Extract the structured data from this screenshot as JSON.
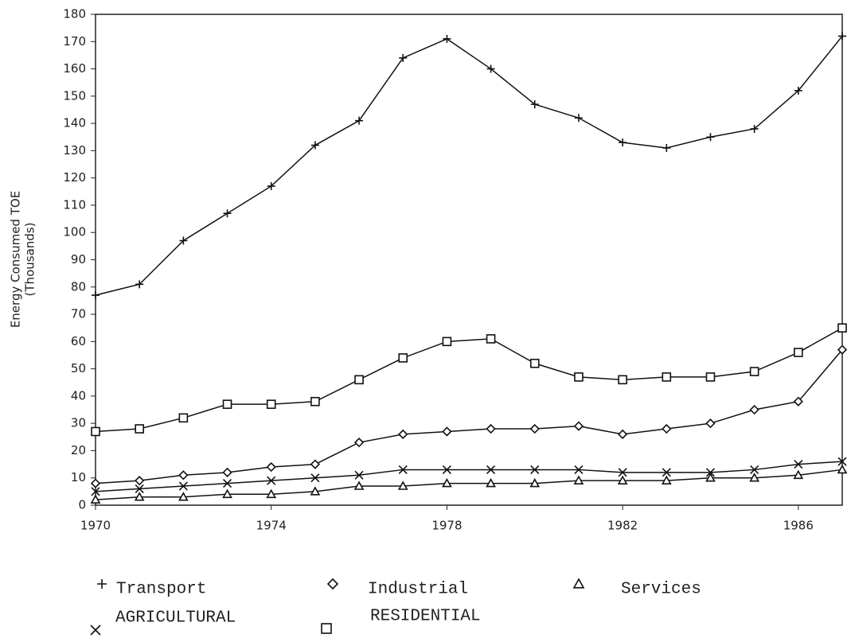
{
  "chart_data": {
    "type": "line",
    "y_label": [
      "Energy Consumed TOE",
      "(Thousands)"
    ],
    "x": [
      1970,
      1971,
      1972,
      1973,
      1974,
      1975,
      1976,
      1977,
      1978,
      1979,
      1980,
      1981,
      1982,
      1983,
      1984,
      1985,
      1986,
      1987
    ],
    "xlim": [
      1970,
      1987
    ],
    "xticks": [
      1970,
      1974,
      1978,
      1982,
      1986
    ],
    "ylim": [
      0,
      180
    ],
    "yticks": [
      0,
      10,
      20,
      30,
      40,
      50,
      60,
      70,
      80,
      90,
      100,
      110,
      120,
      130,
      140,
      150,
      160,
      170,
      180
    ],
    "series": [
      {
        "name": "Transport",
        "color": "#111111",
        "marker": "plus",
        "values": [
          77,
          81,
          97,
          107,
          117,
          132,
          141,
          164,
          171,
          160,
          147,
          142,
          133,
          131,
          135,
          138,
          152,
          172
        ]
      },
      {
        "name": "Industrial",
        "color": "#111111",
        "marker": "diamond",
        "values": [
          8,
          9,
          11,
          12,
          14,
          15,
          23,
          26,
          27,
          28,
          28,
          29,
          26,
          28,
          30,
          35,
          38,
          57
        ]
      },
      {
        "name": "Services",
        "color": "#111111",
        "marker": "triangle",
        "values": [
          2,
          3,
          3,
          4,
          4,
          5,
          7,
          7,
          8,
          8,
          8,
          9,
          9,
          9,
          10,
          10,
          11,
          13
        ]
      },
      {
        "name": "AGRICULTURAL",
        "color": "#111111",
        "marker": "cross",
        "values": [
          5,
          6,
          7,
          8,
          9,
          10,
          11,
          13,
          13,
          13,
          13,
          13,
          12,
          12,
          12,
          13,
          15,
          16
        ]
      },
      {
        "name": "RESIDENTIAL",
        "color": "#111111",
        "marker": "square",
        "values": [
          27,
          28,
          32,
          37,
          37,
          38,
          46,
          54,
          60,
          61,
          52,
          47,
          46,
          47,
          47,
          49,
          56,
          65
        ]
      }
    ]
  }
}
